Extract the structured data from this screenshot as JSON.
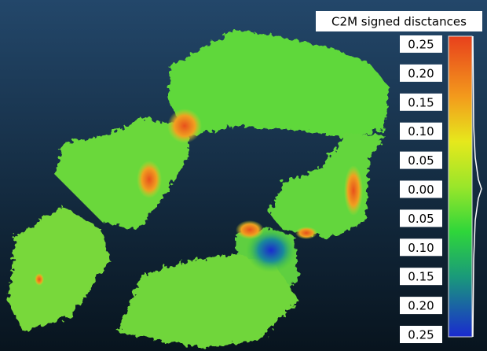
{
  "color_scale": {
    "title": "C2M signed disctances",
    "labels": [
      "0.25",
      "0.20",
      "0.15",
      "0.10",
      "0.05",
      "0.00",
      "0.05",
      "0.10",
      "0.15",
      "0.20",
      "0.25"
    ]
  }
}
